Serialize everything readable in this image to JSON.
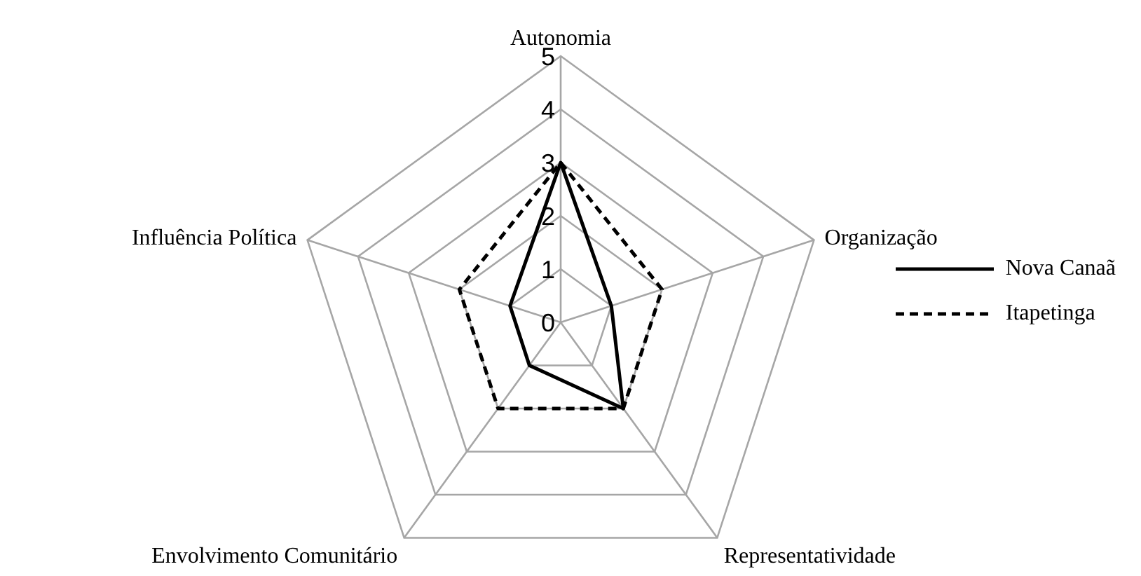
{
  "chart_data": {
    "type": "radar",
    "categories": [
      "Autonomia",
      "Organização",
      "Representatividade",
      "Envolvimento Comunitário",
      "Influência Política"
    ],
    "series": [
      {
        "name": "Nova Canaã",
        "color": "#000000",
        "line_style": "solid",
        "values": [
          3,
          1,
          2,
          1,
          1
        ]
      },
      {
        "name": "Itapetinga",
        "color": "#000000",
        "line_style": "dashed",
        "values": [
          3,
          2,
          2,
          2,
          2
        ]
      }
    ],
    "ylim": [
      0,
      5
    ],
    "yticks": [
      0,
      1,
      2,
      3,
      4,
      5
    ],
    "grid": true,
    "legend": "right",
    "marker": "none"
  }
}
